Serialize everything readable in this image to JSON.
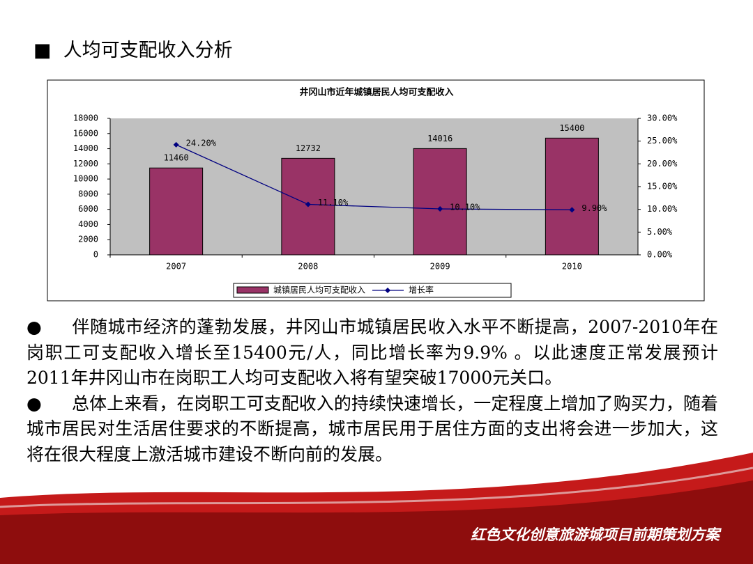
{
  "heading": "人均可支配收入分析",
  "chart_data": {
    "type": "combo",
    "title": "井冈山市近年城镇居民人均可支配收入",
    "categories": [
      "2007",
      "2008",
      "2009",
      "2010"
    ],
    "series": [
      {
        "name": "城镇居民人均可支配收入",
        "type": "bar",
        "color": "#993366",
        "values": [
          11460,
          12732,
          14016,
          15400
        ]
      },
      {
        "name": "增长率",
        "type": "line",
        "axis": "y2",
        "color": "#000080",
        "values": [
          24.2,
          11.1,
          10.1,
          9.9
        ],
        "value_labels": [
          "24.20%",
          "11.10%",
          "10.10%",
          "9.90%"
        ]
      }
    ],
    "ylim": [
      0,
      18000
    ],
    "yticks": [
      0,
      2000,
      4000,
      6000,
      8000,
      10000,
      12000,
      14000,
      16000,
      18000
    ],
    "y2lim": [
      0,
      30
    ],
    "y2ticks": [
      {
        "value": 0,
        "label": "0.00%"
      },
      {
        "value": 5,
        "label": "5.00%"
      },
      {
        "value": 10,
        "label": "10.00%"
      },
      {
        "value": 15,
        "label": "15.00%"
      },
      {
        "value": 20,
        "label": "20.00%"
      },
      {
        "value": 25,
        "label": "25.00%"
      },
      {
        "value": 30,
        "label": "30.00%"
      }
    ],
    "legend": "bottom"
  },
  "paragraphs": [
    "伴随城市经济的蓬勃发展，井冈山市城镇居民收入水平不断提高，2007-2010年在岗职工可支配收入增长至15400元/人，同比增长率为9.9% 。以此速度正常发展预计2011年井冈山市在岗职工人均可支配收入将有望突破17000元关口。",
    "总体上来看，在岗职工可支配收入的持续快速增长，一定程度上增加了购买力，随着城市居民对生活居住要求的不断提高，城市居民用于居住方面的支出将会进一步加大，这将在很大程度上激活城市建设不断向前的发展。"
  ],
  "footer": "红色文化创意旅游城项目前期策划方案"
}
